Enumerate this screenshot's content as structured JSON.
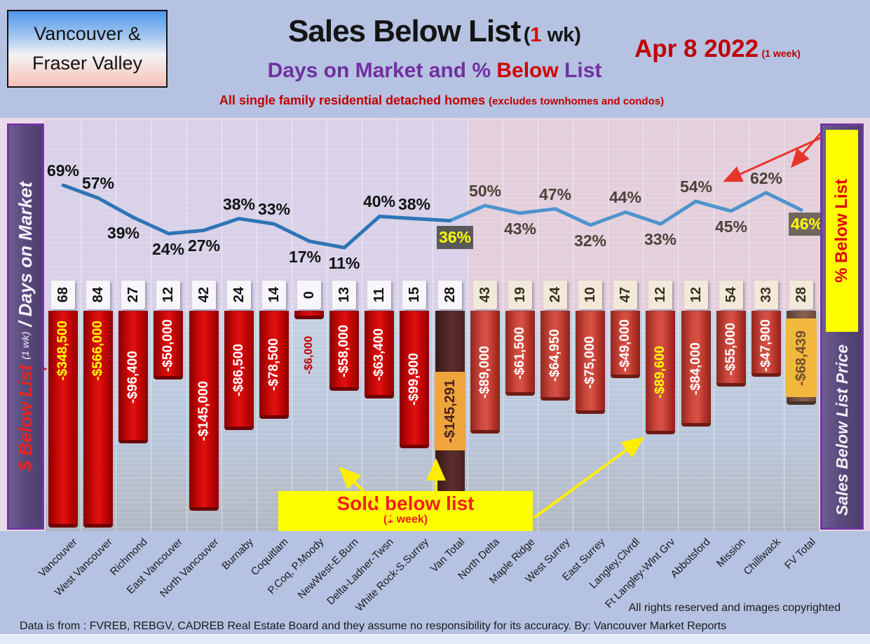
{
  "header": {
    "region_line1": "Vancouver &",
    "region_line2": "Fraser Valley",
    "title": "Sales Below List",
    "title_suffix_open": "(",
    "title_suffix_num": "1",
    "title_suffix_rest": " wk)",
    "subtitle_p1": "Days on Market and % ",
    "subtitle_p2": "Below",
    "subtitle_p3": " List",
    "date": "Apr 8  2022",
    "date_note": "(1 week)",
    "tagline_main": "All single family residential detached homes ",
    "tagline_paren": "(excludes townhomes and condos)"
  },
  "left_axis": {
    "dollar": "$ Below List ",
    "wk": "(1 wk)",
    "slash_days": " / Days on Market"
  },
  "right_axis": {
    "pct_box": "% Below List",
    "label": "Sales Below List Price"
  },
  "callout": {
    "line1": "Sold below list",
    "line2": "(1 week)"
  },
  "footer": {
    "rights": "All rights reserved and  images copyrighted",
    "source": "Data is from : FVREB, REBGV, CADREB Real Estate Board and they assume no responsibility for its accuracy. By: Vancouver Market Reports"
  },
  "chart_data": {
    "type": "bar+line",
    "title": "Sales Below List (1 wk) - Days on Market and % Below List",
    "date": "Apr 8 2022",
    "categories": [
      "Vancouver",
      "West Vancouver",
      "Richmond",
      "East Vancouver",
      "North Vancouver",
      "Burnaby",
      "Coquitlam",
      "P.Coq, P.Moody",
      "NewWest-E.Burn",
      "Delta-Ladner-Twsn",
      "White Rock-S.Surrey",
      "Van Total",
      "North Delta",
      "Maple Ridge",
      "West Surrey",
      "East Surrey",
      "Langley,Clvrdl",
      "Ft Langley-Wlnt Grv",
      "Abbotsford",
      "Mission",
      "Chilliwack",
      "FV Total"
    ],
    "series": [
      {
        "name": "Days on Market",
        "values": [
          68,
          84,
          27,
          12,
          42,
          24,
          14,
          0,
          13,
          11,
          15,
          28,
          43,
          19,
          24,
          10,
          47,
          12,
          12,
          54,
          33,
          28
        ]
      },
      {
        "name": "$ Below List (1 wk)",
        "values": [
          -348500,
          -566000,
          -96400,
          -50000,
          -145000,
          -86500,
          -78500,
          -6000,
          -58000,
          -63400,
          -99900,
          -145291,
          -89000,
          -61500,
          -64950,
          -75000,
          -49000,
          -89600,
          -84000,
          -55000,
          -47900,
          -68439
        ],
        "labels": [
          "-$348,500",
          "-$566,000",
          "-$96,400",
          "-$50,000",
          "-$145,000",
          "-$86,500",
          "-$78,500",
          "-$6,000",
          "-$58,000",
          "-$63,400",
          "-$99,900",
          "-$145,291",
          "-$89,000",
          "-$61,500",
          "-$64,950",
          "-$75,000",
          "-$49,000",
          "-$89,600",
          "-$84,000",
          "-$55,000",
          "-$47,900",
          "-$68,439"
        ]
      },
      {
        "name": "% Below List",
        "values": [
          69,
          57,
          39,
          24,
          27,
          38,
          33,
          17,
          11,
          40,
          38,
          36,
          50,
          43,
          47,
          32,
          44,
          33,
          54,
          45,
          62,
          46
        ]
      }
    ],
    "pct_label_side": [
      "above",
      "above",
      "below",
      "below",
      "below",
      "above",
      "above",
      "below",
      "below",
      "above",
      "above",
      "below",
      "above",
      "below",
      "above",
      "below",
      "above",
      "below",
      "above",
      "below",
      "above",
      "below"
    ],
    "regions": {
      "vancouver_cols": 12,
      "fraser_valley_cols": 10
    },
    "highlights": {
      "van_total_index": 11,
      "fv_total_index": 21,
      "yellow_value_indices": [
        0,
        1,
        17
      ],
      "boxed_pct_indices": [
        11,
        21
      ]
    },
    "legend_position": "none",
    "grid": true,
    "colors": {
      "line_van": "#2e74b5",
      "line_fv": "#4e94cd",
      "bar_van": "#cc0606",
      "bar_fv": "#cc473c",
      "bar_van_total": "#512727",
      "bar_fv_total": "#7b5848",
      "pct_box_bg": "#595959",
      "pct_box_bg_fv": "#6f675c",
      "pct_box_text": "#ffff00",
      "value_label": "#ffffff",
      "value_label_highlight": "#ffff00",
      "sidebar": "#5a4a7d",
      "accent_yellow": "#ffff00",
      "accent_red": "#e00000"
    }
  }
}
